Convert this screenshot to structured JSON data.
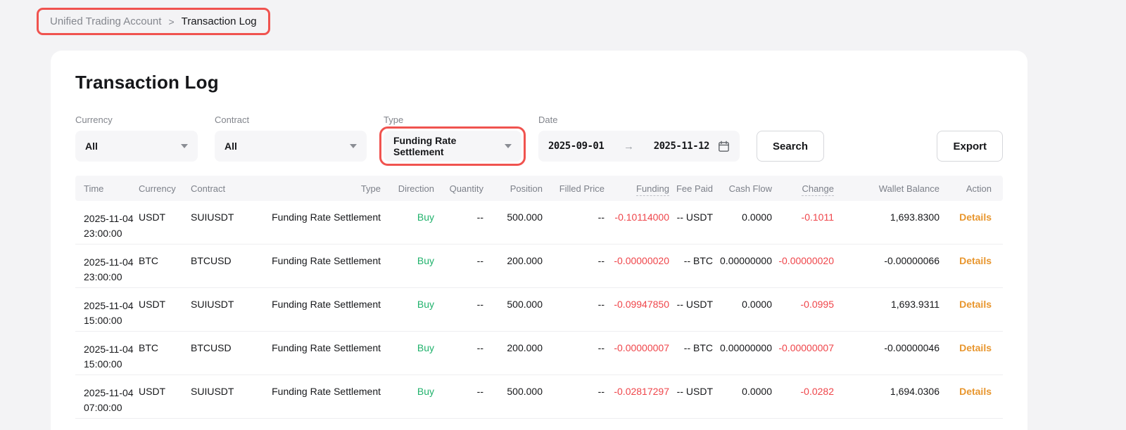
{
  "colors": {
    "page_bg": "#f3f3f5",
    "annotation_red": "#f0534f",
    "control_bg": "#f6f6f8",
    "green": "#20b26c",
    "red": "#ef454a",
    "link_orange": "#e8962e",
    "text_dark": "#16171a"
  },
  "breadcrumb": {
    "items": [
      "Unified Trading Account",
      "Transaction Log"
    ],
    "separator": ">"
  },
  "page": {
    "title": "Transaction Log"
  },
  "filters": {
    "currency": {
      "label": "Currency",
      "value": "All"
    },
    "contract": {
      "label": "Contract",
      "value": "All"
    },
    "type": {
      "label": "Type",
      "value": "Funding Rate Settlement",
      "highlighted": true
    },
    "date": {
      "label": "Date",
      "start": "2025-09-01",
      "end": "2025-11-12",
      "arrow": "→"
    },
    "search_label": "Search",
    "export_label": "Export"
  },
  "table": {
    "columns": [
      {
        "key": "time",
        "label": "Time"
      },
      {
        "key": "currency",
        "label": "Currency"
      },
      {
        "key": "contract",
        "label": "Contract"
      },
      {
        "key": "type",
        "label": "Type"
      },
      {
        "key": "direction",
        "label": "Direction",
        "positive_green": true
      },
      {
        "key": "quantity",
        "label": "Quantity"
      },
      {
        "key": "position",
        "label": "Position"
      },
      {
        "key": "filled_price",
        "label": "Filled Price"
      },
      {
        "key": "funding",
        "label": "Funding",
        "tooltip": true,
        "negative_red": true
      },
      {
        "key": "fee_paid",
        "label": "Fee Paid"
      },
      {
        "key": "cash_flow",
        "label": "Cash Flow"
      },
      {
        "key": "change",
        "label": "Change",
        "tooltip": true,
        "negative_red": true
      },
      {
        "key": "wallet_balance",
        "label": "Wallet Balance"
      },
      {
        "key": "action",
        "label": "Action",
        "link": true
      }
    ],
    "rows": [
      {
        "time": {
          "date": "2025-11-04",
          "clock": "23:00:00"
        },
        "currency": "USDT",
        "contract": "SUIUSDT",
        "type": "Funding Rate Settlement",
        "direction": "Buy",
        "quantity": "--",
        "position": "500.000",
        "filled_price": "--",
        "funding": "-0.10114000",
        "fee_paid": "-- USDT",
        "cash_flow": "0.0000",
        "change": "-0.1011",
        "wallet_balance": "1,693.8300",
        "action": "Details"
      },
      {
        "time": {
          "date": "2025-11-04",
          "clock": "23:00:00"
        },
        "currency": "BTC",
        "contract": "BTCUSD",
        "type": "Funding Rate Settlement",
        "direction": "Buy",
        "quantity": "--",
        "position": "200.000",
        "filled_price": "--",
        "funding": "-0.00000020",
        "fee_paid": "-- BTC",
        "cash_flow": "0.00000000",
        "change": "-0.00000020",
        "wallet_balance": "-0.00000066",
        "action": "Details"
      },
      {
        "time": {
          "date": "2025-11-04",
          "clock": "15:00:00"
        },
        "currency": "USDT",
        "contract": "SUIUSDT",
        "type": "Funding Rate Settlement",
        "direction": "Buy",
        "quantity": "--",
        "position": "500.000",
        "filled_price": "--",
        "funding": "-0.09947850",
        "fee_paid": "-- USDT",
        "cash_flow": "0.0000",
        "change": "-0.0995",
        "wallet_balance": "1,693.9311",
        "action": "Details"
      },
      {
        "time": {
          "date": "2025-11-04",
          "clock": "15:00:00"
        },
        "currency": "BTC",
        "contract": "BTCUSD",
        "type": "Funding Rate Settlement",
        "direction": "Buy",
        "quantity": "--",
        "position": "200.000",
        "filled_price": "--",
        "funding": "-0.00000007",
        "fee_paid": "-- BTC",
        "cash_flow": "0.00000000",
        "change": "-0.00000007",
        "wallet_balance": "-0.00000046",
        "action": "Details"
      },
      {
        "time": {
          "date": "2025-11-04",
          "clock": "07:00:00"
        },
        "currency": "USDT",
        "contract": "SUIUSDT",
        "type": "Funding Rate Settlement",
        "direction": "Buy",
        "quantity": "--",
        "position": "500.000",
        "filled_price": "--",
        "funding": "-0.02817297",
        "fee_paid": "-- USDT",
        "cash_flow": "0.0000",
        "change": "-0.0282",
        "wallet_balance": "1,694.0306",
        "action": "Details"
      }
    ]
  }
}
